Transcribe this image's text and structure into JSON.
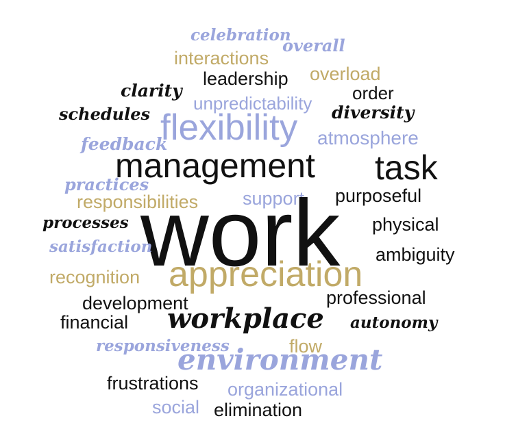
{
  "colors": {
    "black": "#111111",
    "gold": "#c1aa67",
    "blue": "#9aa5dc"
  },
  "words": {
    "celebration": "celebration",
    "overall": "overall",
    "interactions": "interactions",
    "leadership": "leadership",
    "overload": "overload",
    "clarity": "clarity",
    "order": "order",
    "unpredictability": "unpredictability",
    "schedules": "schedules",
    "diversity": "diversity",
    "flexibility": "flexibility",
    "feedback": "feedback",
    "atmosphere": "atmosphere",
    "management": "management",
    "task": "task",
    "practices": "practices",
    "responsibilities": "responsibilities",
    "support": "support",
    "purposeful": "purposeful",
    "processes": "processes",
    "work": "work",
    "physical": "physical",
    "satisfaction": "satisfaction",
    "ambiguity": "ambiguity",
    "recognition": "recognition",
    "appreciation": "appreciation",
    "development": "development",
    "professional": "professional",
    "financial": "financial",
    "workplace": "workplace",
    "autonomy": "autonomy",
    "responsiveness": "responsiveness",
    "flow": "flow",
    "environment": "environment",
    "frustrations": "frustrations",
    "organizational": "organizational",
    "social": "social",
    "elimination": "elimination"
  }
}
